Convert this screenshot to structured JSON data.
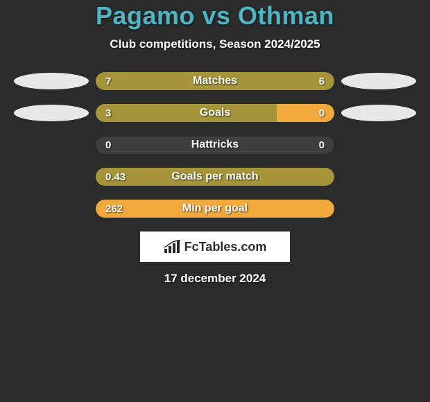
{
  "title": "Pagamo vs Othman",
  "subtitle": "Club competitions, Season 2024/2025",
  "date": "17 december 2024",
  "brand": "FcTables.com",
  "colors": {
    "background": "#2b2b2b",
    "track": "#3f3f3f",
    "primary_bar": "#a5943a",
    "accent_bar": "#f2a93b",
    "ellipse_left": "#e8e8e8",
    "ellipse_right": "#e8e8e8",
    "title": "#4fb5c4",
    "text": "#ffffff",
    "brand_bg": "#ffffff",
    "brand_text": "#2b2b2b"
  },
  "rows": [
    {
      "label": "Matches",
      "left_value": "7",
      "right_value": "6",
      "left_pct": 76,
      "right_pct": 24,
      "left_color": "#a5943a",
      "right_color": "#a5943a",
      "show_ellipses": true
    },
    {
      "label": "Goals",
      "left_value": "3",
      "right_value": "0",
      "left_pct": 76,
      "right_pct": 24,
      "left_color": "#a5943a",
      "right_color": "#f2a93b",
      "show_ellipses": true
    },
    {
      "label": "Hattricks",
      "left_value": "0",
      "right_value": "0",
      "left_pct": 0,
      "right_pct": 0,
      "left_color": "#a5943a",
      "right_color": "#a5943a",
      "show_ellipses": false
    },
    {
      "label": "Goals per match",
      "left_value": "0.43",
      "right_value": "",
      "left_pct": 100,
      "right_pct": 0,
      "left_color": "#a5943a",
      "right_color": "#a5943a",
      "show_ellipses": false
    },
    {
      "label": "Min per goal",
      "left_value": "262",
      "right_value": "",
      "left_pct": 100,
      "right_pct": 0,
      "left_color": "#f2a93b",
      "right_color": "#f2a93b",
      "show_ellipses": false
    }
  ]
}
